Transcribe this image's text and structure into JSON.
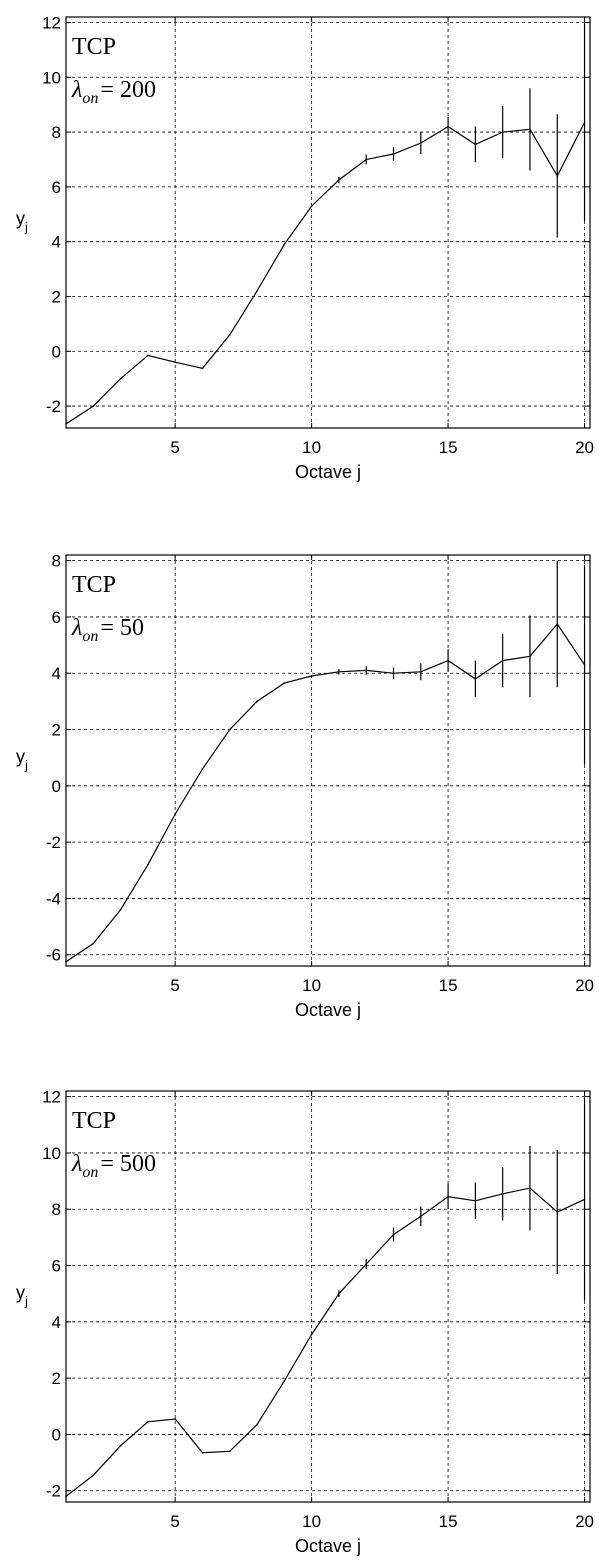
{
  "chart_data": [
    {
      "type": "line",
      "title": "",
      "annotation_line1": "TCP",
      "lambda_symbol": "λ",
      "lambda_subscript": "on",
      "lambda_value": "= 200",
      "xlabel": "Octave j",
      "ylabel_base": "y",
      "ylabel_sub": "j",
      "xlim": [
        1,
        20.2
      ],
      "ylim": [
        -2.8,
        12.2
      ],
      "xticks": [
        5,
        10,
        15,
        20
      ],
      "yticks": [
        -2,
        0,
        2,
        4,
        6,
        8,
        10,
        12
      ],
      "grid": true,
      "x": [
        1,
        2,
        3,
        4,
        5,
        6,
        7,
        8,
        9,
        10,
        11,
        12,
        13,
        14,
        15,
        16,
        17,
        18,
        19,
        20
      ],
      "y": [
        -2.65,
        -2.0,
        -1.0,
        -0.15,
        -0.4,
        -0.62,
        0.6,
        2.2,
        3.9,
        5.3,
        6.25,
        7.0,
        7.2,
        7.6,
        8.2,
        7.55,
        8.0,
        8.1,
        6.4,
        8.35
      ],
      "err": [
        0,
        0,
        0,
        0,
        0,
        0,
        0,
        0,
        0,
        0,
        0.12,
        0.18,
        0.25,
        0.4,
        0.35,
        0.65,
        0.95,
        1.5,
        2.25,
        3.6
      ]
    },
    {
      "type": "line",
      "title": "",
      "annotation_line1": "TCP",
      "lambda_symbol": "λ",
      "lambda_subscript": "on",
      "lambda_value": "= 50",
      "xlabel": "Octave j",
      "ylabel_base": "y",
      "ylabel_sub": "j",
      "xlim": [
        1,
        20.2
      ],
      "ylim": [
        -6.4,
        8.2
      ],
      "xticks": [
        5,
        10,
        15,
        20
      ],
      "yticks": [
        -6,
        -4,
        -2,
        0,
        2,
        4,
        6,
        8
      ],
      "grid": true,
      "x": [
        1,
        2,
        3,
        4,
        5,
        6,
        7,
        8,
        9,
        10,
        11,
        12,
        13,
        14,
        15,
        16,
        17,
        18,
        19,
        20
      ],
      "y": [
        -6.25,
        -5.6,
        -4.4,
        -2.8,
        -1.0,
        0.6,
        2.0,
        3.0,
        3.65,
        3.9,
        4.05,
        4.1,
        4.0,
        4.05,
        4.45,
        3.8,
        4.45,
        4.6,
        5.75,
        4.3
      ],
      "err": [
        0,
        0,
        0,
        0,
        0,
        0,
        0,
        0,
        0,
        0,
        0.1,
        0.15,
        0.2,
        0.3,
        0.4,
        0.65,
        0.95,
        1.45,
        2.25,
        3.55
      ]
    },
    {
      "type": "line",
      "title": "",
      "annotation_line1": "TCP",
      "lambda_symbol": "λ",
      "lambda_subscript": "on",
      "lambda_value": "= 500",
      "xlabel": "Octave j",
      "ylabel_base": "y",
      "ylabel_sub": "j",
      "xlim": [
        1,
        20.2
      ],
      "ylim": [
        -2.4,
        12.2
      ],
      "xticks": [
        5,
        10,
        15,
        20
      ],
      "yticks": [
        -2,
        0,
        2,
        4,
        6,
        8,
        10,
        12
      ],
      "grid": true,
      "x": [
        1,
        2,
        3,
        4,
        5,
        6,
        7,
        8,
        9,
        10,
        11,
        12,
        13,
        14,
        15,
        16,
        17,
        18,
        19,
        20
      ],
      "y": [
        -2.2,
        -1.45,
        -0.4,
        0.45,
        0.55,
        -0.65,
        -0.6,
        0.35,
        1.9,
        3.55,
        5.0,
        6.05,
        7.1,
        7.75,
        8.45,
        8.3,
        8.55,
        8.75,
        7.9,
        8.35
      ],
      "err": [
        0,
        0,
        0,
        0,
        0,
        0,
        0,
        0,
        0,
        0,
        0.12,
        0.18,
        0.25,
        0.35,
        0.45,
        0.65,
        0.95,
        1.5,
        2.2,
        3.6
      ]
    }
  ]
}
